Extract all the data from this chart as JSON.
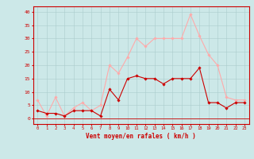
{
  "x": [
    0,
    1,
    2,
    3,
    4,
    5,
    6,
    7,
    8,
    9,
    10,
    11,
    12,
    13,
    14,
    15,
    16,
    17,
    18,
    19,
    20,
    21,
    22,
    23
  ],
  "wind_mean": [
    3,
    2,
    2,
    1,
    3,
    3,
    3,
    1,
    11,
    7,
    15,
    16,
    15,
    15,
    13,
    15,
    15,
    15,
    19,
    6,
    6,
    4,
    6,
    6
  ],
  "wind_gust": [
    7,
    1,
    8,
    1,
    4,
    6,
    3,
    5,
    20,
    17,
    23,
    30,
    27,
    30,
    30,
    30,
    30,
    39,
    31,
    24,
    20,
    8,
    7,
    7
  ],
  "mean_color": "#cc0000",
  "gust_color": "#ffaaaa",
  "bg_color": "#cce8e8",
  "grid_color": "#aacccc",
  "xlabel": "Vent moyen/en rafales ( km/h )",
  "xlabel_color": "#cc0000",
  "tick_color": "#cc0000",
  "ylim": [
    -2,
    42
  ],
  "yticks": [
    0,
    5,
    10,
    15,
    20,
    25,
    30,
    35,
    40
  ],
  "spine_color": "#cc0000"
}
